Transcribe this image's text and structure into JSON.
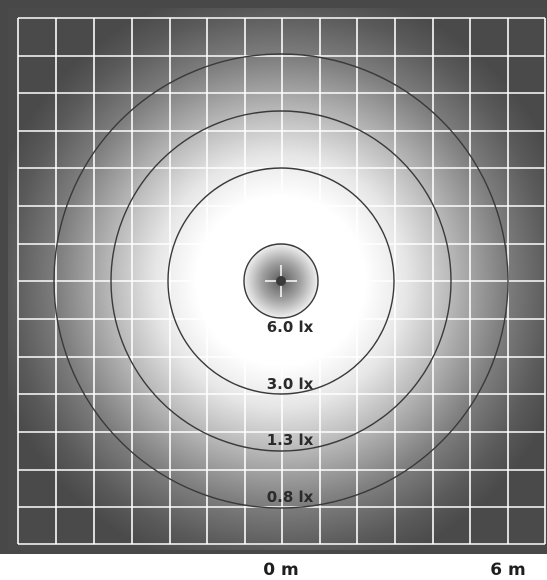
{
  "colors": {
    "background": "#484848",
    "glow_center": "#ffffff",
    "grid": "#ffffff",
    "contour": "#3a3a3a",
    "contour_label": "#2a2a2a",
    "hotspot_center": "#3a3a3a"
  },
  "diagram": {
    "contours": [
      {
        "label": "6.0 lx"
      },
      {
        "label": "3.0 lx"
      },
      {
        "label": "1.3 lx"
      },
      {
        "label": "0.8 lx"
      }
    ]
  },
  "axis": {
    "origin_label": "0 m",
    "end_label": "6 m"
  }
}
